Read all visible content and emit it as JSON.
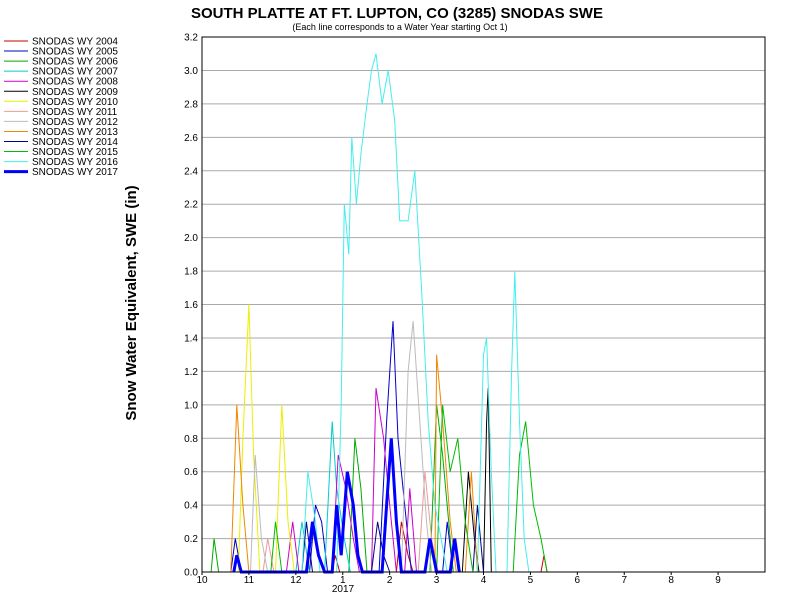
{
  "chart_data": {
    "type": "line",
    "title": "SOUTH PLATTE AT FT. LUPTON, CO (3285) SNODAS SWE",
    "subtitle": "(Each line corresponds to a Water Year starting Oct 1)",
    "ylabel": "Snow Water Equivalent, SWE (in)",
    "xlabel": "",
    "ylim": [
      0,
      3.2
    ],
    "y_ticks": [
      "0.0",
      "0.2",
      "0.4",
      "0.6",
      "0.8",
      "1.0",
      "1.2",
      "1.4",
      "1.6",
      "1.8",
      "2.0",
      "2.2",
      "2.4",
      "2.6",
      "2.8",
      "3.0",
      "3.2"
    ],
    "x_ticks": [
      {
        "month": 10,
        "label": "10"
      },
      {
        "month": 11,
        "label": "11"
      },
      {
        "month": 12,
        "label": "12"
      },
      {
        "month": 1,
        "label": "1"
      },
      {
        "month": 2,
        "label": "2"
      },
      {
        "month": 3,
        "label": "3"
      },
      {
        "month": 4,
        "label": "4"
      },
      {
        "month": 5,
        "label": "5"
      },
      {
        "month": 6,
        "label": "6"
      },
      {
        "month": 7,
        "label": "7"
      },
      {
        "month": 8,
        "label": "8"
      },
      {
        "month": 9,
        "label": "9"
      }
    ],
    "year_label": "2017",
    "grid": true,
    "legend_position": "top-left",
    "series": [
      {
        "name": "SNODAS WY 2004",
        "color": "#cc0000",
        "points": [
          [
            "2016-12-25",
            0
          ],
          [
            "2016-12-27",
            0.1
          ],
          [
            "2016-12-30",
            0
          ],
          [
            "2017-02-05",
            0
          ],
          [
            "2017-02-08",
            0.3
          ],
          [
            "2017-02-12",
            0.1
          ],
          [
            "2017-02-15",
            0
          ],
          [
            "2017-05-08",
            0
          ],
          [
            "2017-05-10",
            0.1
          ],
          [
            "2017-05-12",
            0
          ]
        ]
      },
      {
        "name": "SNODAS WY 2005",
        "color": "#0000cc",
        "points": [
          [
            "2016-10-20",
            0
          ],
          [
            "2016-10-23",
            0.2
          ],
          [
            "2016-10-27",
            0
          ],
          [
            "2016-12-10",
            0
          ],
          [
            "2016-12-14",
            0.4
          ],
          [
            "2016-12-18",
            0.3
          ],
          [
            "2016-12-22",
            0
          ],
          [
            "2017-01-25",
            0
          ],
          [
            "2017-01-30",
            0.9
          ],
          [
            "2017-02-03",
            1.5
          ],
          [
            "2017-02-06",
            0.8
          ],
          [
            "2017-02-10",
            0.4
          ],
          [
            "2017-02-14",
            0
          ],
          [
            "2017-03-05",
            0
          ],
          [
            "2017-03-08",
            0.3
          ],
          [
            "2017-03-12",
            0
          ]
        ]
      },
      {
        "name": "SNODAS WY 2006",
        "color": "#00aa00",
        "points": [
          [
            "2016-10-07",
            0
          ],
          [
            "2016-10-09",
            0.2
          ],
          [
            "2016-10-12",
            0
          ],
          [
            "2017-01-05",
            0
          ],
          [
            "2017-01-09",
            0.8
          ],
          [
            "2017-01-13",
            0.5
          ],
          [
            "2017-01-17",
            0
          ],
          [
            "2017-02-25",
            0
          ],
          [
            "2017-03-01",
            1.0
          ],
          [
            "2017-03-05",
            0.7
          ],
          [
            "2017-03-09",
            0.3
          ],
          [
            "2017-03-12",
            0
          ]
        ]
      },
      {
        "name": "SNODAS WY 2007",
        "color": "#00cccc",
        "points": [
          [
            "2016-12-01",
            0
          ],
          [
            "2016-12-05",
            0.3
          ],
          [
            "2016-12-10",
            0
          ],
          [
            "2016-12-20",
            0
          ],
          [
            "2016-12-25",
            0.9
          ],
          [
            "2016-12-28",
            0.5
          ],
          [
            "2017-01-02",
            0.2
          ],
          [
            "2017-01-06",
            0
          ]
        ]
      },
      {
        "name": "SNODAS WY 2008",
        "color": "#cc00cc",
        "points": [
          [
            "2016-11-25",
            0
          ],
          [
            "2016-11-29",
            0.3
          ],
          [
            "2016-12-03",
            0
          ],
          [
            "2016-12-25",
            0
          ],
          [
            "2016-12-29",
            0.7
          ],
          [
            "2017-01-03",
            0.5
          ],
          [
            "2017-01-08",
            0.2
          ],
          [
            "2017-01-12",
            0
          ],
          [
            "2017-01-20",
            0
          ],
          [
            "2017-01-23",
            1.1
          ],
          [
            "2017-01-28",
            0.8
          ],
          [
            "2017-02-01",
            0.4
          ],
          [
            "2017-02-05",
            0
          ],
          [
            "2017-02-10",
            0
          ],
          [
            "2017-02-13",
            0.5
          ],
          [
            "2017-02-17",
            0
          ]
        ]
      },
      {
        "name": "SNODAS WY 2009",
        "color": "#000000",
        "points": [
          [
            "2017-03-18",
            0
          ],
          [
            "2017-03-22",
            0.6
          ],
          [
            "2017-03-26",
            0.2
          ],
          [
            "2017-03-29",
            0
          ],
          [
            "2017-04-01",
            0
          ],
          [
            "2017-04-03",
            0.9
          ],
          [
            "2017-04-04",
            1.1
          ],
          [
            "2017-04-06",
            0
          ]
        ]
      },
      {
        "name": "SNODAS WY 2010",
        "color": "#eeee00",
        "points": [
          [
            "2016-10-25",
            0
          ],
          [
            "2016-10-28",
            0.8
          ],
          [
            "2016-11-01",
            1.6
          ],
          [
            "2016-11-04",
            0.7
          ],
          [
            "2016-11-08",
            0
          ],
          [
            "2016-11-18",
            0
          ],
          [
            "2016-11-22",
            1.0
          ],
          [
            "2016-11-26",
            0.3
          ],
          [
            "2016-11-30",
            0
          ]
        ]
      },
      {
        "name": "SNODAS WY 2011",
        "color": "#ee9999",
        "points": [
          [
            "2016-11-10",
            0
          ],
          [
            "2016-11-13",
            0.2
          ],
          [
            "2016-11-17",
            0
          ],
          [
            "2017-02-18",
            0
          ],
          [
            "2017-02-22",
            0.6
          ],
          [
            "2017-02-26",
            0.2
          ],
          [
            "2017-03-02",
            0
          ]
        ]
      },
      {
        "name": "SNODAS WY 2012",
        "color": "#bbbbbb",
        "points": [
          [
            "2016-11-02",
            0
          ],
          [
            "2016-11-05",
            0.7
          ],
          [
            "2016-11-09",
            0.2
          ],
          [
            "2016-11-13",
            0
          ],
          [
            "2017-02-08",
            0
          ],
          [
            "2017-02-12",
            1.2
          ],
          [
            "2017-02-15",
            1.5
          ],
          [
            "2017-02-19",
            0.9
          ],
          [
            "2017-02-23",
            0.3
          ],
          [
            "2017-02-26",
            0
          ]
        ]
      },
      {
        "name": "SNODAS WY 2013",
        "color": "#ee8800",
        "points": [
          [
            "2016-10-20",
            0
          ],
          [
            "2016-10-24",
            1.0
          ],
          [
            "2016-10-28",
            0.4
          ],
          [
            "2016-11-01",
            0
          ],
          [
            "2017-02-28",
            0
          ],
          [
            "2017-03-01",
            1.3
          ],
          [
            "2017-03-05",
            0.9
          ],
          [
            "2017-03-10",
            0.3
          ],
          [
            "2017-03-14",
            0
          ],
          [
            "2017-03-20",
            0
          ],
          [
            "2017-03-24",
            0.6
          ],
          [
            "2017-03-28",
            0
          ]
        ]
      },
      {
        "name": "SNODAS WY 2014",
        "color": "#000088",
        "points": [
          [
            "2016-12-05",
            0
          ],
          [
            "2016-12-08",
            0.3
          ],
          [
            "2016-12-12",
            0
          ],
          [
            "2017-01-20",
            0
          ],
          [
            "2017-01-24",
            0.3
          ],
          [
            "2017-01-28",
            0.1
          ],
          [
            "2017-02-01",
            0
          ],
          [
            "2017-03-25",
            0
          ],
          [
            "2017-03-28",
            0.4
          ],
          [
            "2017-04-01",
            0
          ]
        ]
      },
      {
        "name": "SNODAS WY 2015",
        "color": "#00bb00",
        "points": [
          [
            "2016-11-15",
            0
          ],
          [
            "2016-11-18",
            0.3
          ],
          [
            "2016-11-22",
            0
          ],
          [
            "2017-03-01",
            0
          ],
          [
            "2017-03-05",
            1.0
          ],
          [
            "2017-03-10",
            0.6
          ],
          [
            "2017-03-15",
            0.8
          ],
          [
            "2017-03-20",
            0.3
          ],
          [
            "2017-03-25",
            0
          ],
          [
            "2017-04-20",
            0
          ],
          [
            "2017-04-24",
            0.7
          ],
          [
            "2017-04-28",
            0.9
          ],
          [
            "2017-05-03",
            0.4
          ],
          [
            "2017-05-08",
            0.2
          ],
          [
            "2017-05-12",
            0
          ]
        ]
      },
      {
        "name": "SNODAS WY 2016",
        "color": "#44eeee",
        "points": [
          [
            "2016-12-05",
            0
          ],
          [
            "2016-12-09",
            0.6
          ],
          [
            "2016-12-14",
            0.3
          ],
          [
            "2016-12-17",
            0
          ],
          [
            "2016-12-28",
            0
          ],
          [
            "2016-12-31",
            1.0
          ],
          [
            "2017-01-02",
            2.2
          ],
          [
            "2017-01-05",
            1.9
          ],
          [
            "2017-01-07",
            2.6
          ],
          [
            "2017-01-10",
            2.2
          ],
          [
            "2017-01-13",
            2.5
          ],
          [
            "2017-01-17",
            2.8
          ],
          [
            "2017-01-20",
            3.0
          ],
          [
            "2017-01-23",
            3.1
          ],
          [
            "2017-01-27",
            2.8
          ],
          [
            "2017-01-31",
            3.0
          ],
          [
            "2017-02-04",
            2.7
          ],
          [
            "2017-02-07",
            2.1
          ],
          [
            "2017-02-12",
            2.1
          ],
          [
            "2017-02-16",
            2.4
          ],
          [
            "2017-02-20",
            1.7
          ],
          [
            "2017-02-24",
            0.9
          ],
          [
            "2017-02-28",
            0.4
          ],
          [
            "2017-03-04",
            0.2
          ],
          [
            "2017-03-08",
            0
          ],
          [
            "2017-03-28",
            0
          ],
          [
            "2017-04-01",
            1.3
          ],
          [
            "2017-04-03",
            1.4
          ],
          [
            "2017-04-06",
            0.6
          ],
          [
            "2017-04-09",
            0
          ],
          [
            "2017-04-16",
            0
          ],
          [
            "2017-04-19",
            1.2
          ],
          [
            "2017-04-21",
            1.8
          ],
          [
            "2017-04-24",
            0.9
          ],
          [
            "2017-04-27",
            0.2
          ],
          [
            "2017-04-30",
            0
          ]
        ]
      },
      {
        "name": "SNODAS WY 2017",
        "color": "#0000ff",
        "points": [
          [
            "2016-10-22",
            0
          ],
          [
            "2016-10-24",
            0.1
          ],
          [
            "2016-10-27",
            0
          ],
          [
            "2016-12-08",
            0
          ],
          [
            "2016-12-12",
            0.3
          ],
          [
            "2016-12-16",
            0.1
          ],
          [
            "2016-12-20",
            0
          ],
          [
            "2016-12-25",
            0
          ],
          [
            "2016-12-28",
            0.4
          ],
          [
            "2016-12-31",
            0.1
          ],
          [
            "2017-01-04",
            0.6
          ],
          [
            "2017-01-08",
            0.4
          ],
          [
            "2017-01-11",
            0.1
          ],
          [
            "2017-01-14",
            0
          ],
          [
            "2017-01-27",
            0
          ],
          [
            "2017-01-30",
            0.4
          ],
          [
            "2017-02-02",
            0.8
          ],
          [
            "2017-02-05",
            0.3
          ],
          [
            "2017-02-08",
            0
          ],
          [
            "2017-02-22",
            0
          ],
          [
            "2017-02-25",
            0.2
          ],
          [
            "2017-03-01",
            0
          ],
          [
            "2017-03-10",
            0
          ],
          [
            "2017-03-13",
            0.2
          ],
          [
            "2017-03-16",
            0
          ]
        ]
      }
    ]
  }
}
